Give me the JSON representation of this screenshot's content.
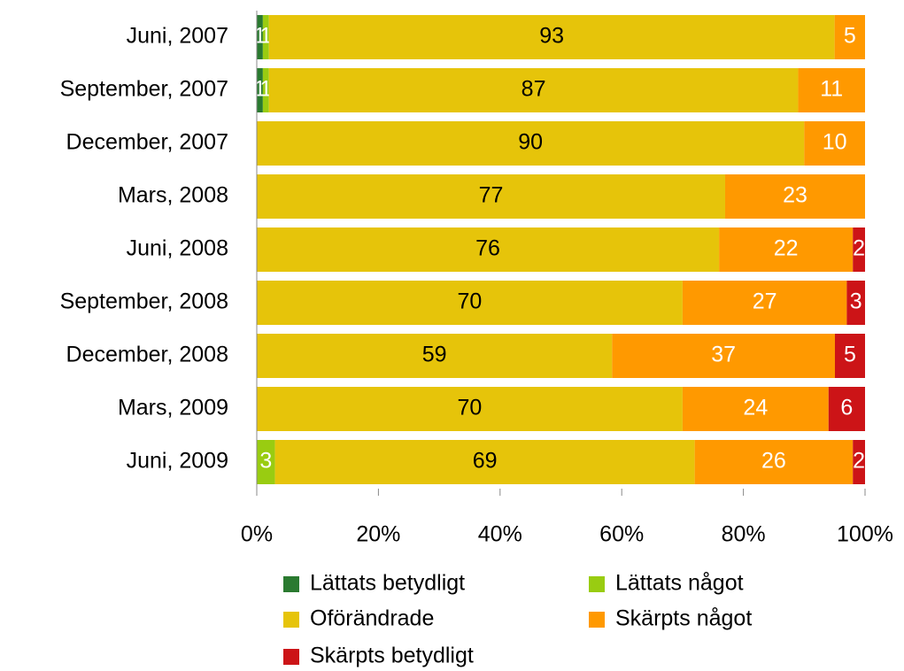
{
  "chart_data": {
    "type": "percent-stacked-bar",
    "categories": [
      "Juni, 2007",
      "September, 2007",
      "December, 2007",
      "Mars, 2008",
      "Juni, 2008",
      "September, 2008",
      "December, 2008",
      "Mars, 2009",
      "Juni, 2009"
    ],
    "series": [
      {
        "name": "Lättats betydligt",
        "color": "#2a7a30",
        "values": [
          1,
          1,
          null,
          null,
          null,
          null,
          null,
          null,
          null
        ]
      },
      {
        "name": "Lättats något",
        "color": "#99cc11",
        "values": [
          1,
          1,
          null,
          null,
          null,
          null,
          null,
          null,
          3
        ]
      },
      {
        "name": "Oförändrade",
        "color": "#e6c40a",
        "values": [
          93,
          87,
          90,
          77,
          76,
          70,
          59,
          70,
          69
        ]
      },
      {
        "name": "Skärpts något",
        "color": "#ff9900",
        "values": [
          5,
          11,
          10,
          23,
          22,
          27,
          37,
          24,
          26
        ]
      },
      {
        "name": "Skärpts betydligt",
        "color": "#cc1417",
        "values": [
          null,
          null,
          null,
          null,
          2,
          3,
          5,
          6,
          2
        ]
      }
    ],
    "xlim": [
      0,
      100
    ],
    "xticks": [
      {
        "value": 0,
        "label": "0%"
      },
      {
        "value": 20,
        "label": "20%"
      },
      {
        "value": 40,
        "label": "40%"
      },
      {
        "value": 60,
        "label": "60%"
      },
      {
        "value": 80,
        "label": "80%"
      },
      {
        "value": 100,
        "label": "100%"
      }
    ]
  }
}
